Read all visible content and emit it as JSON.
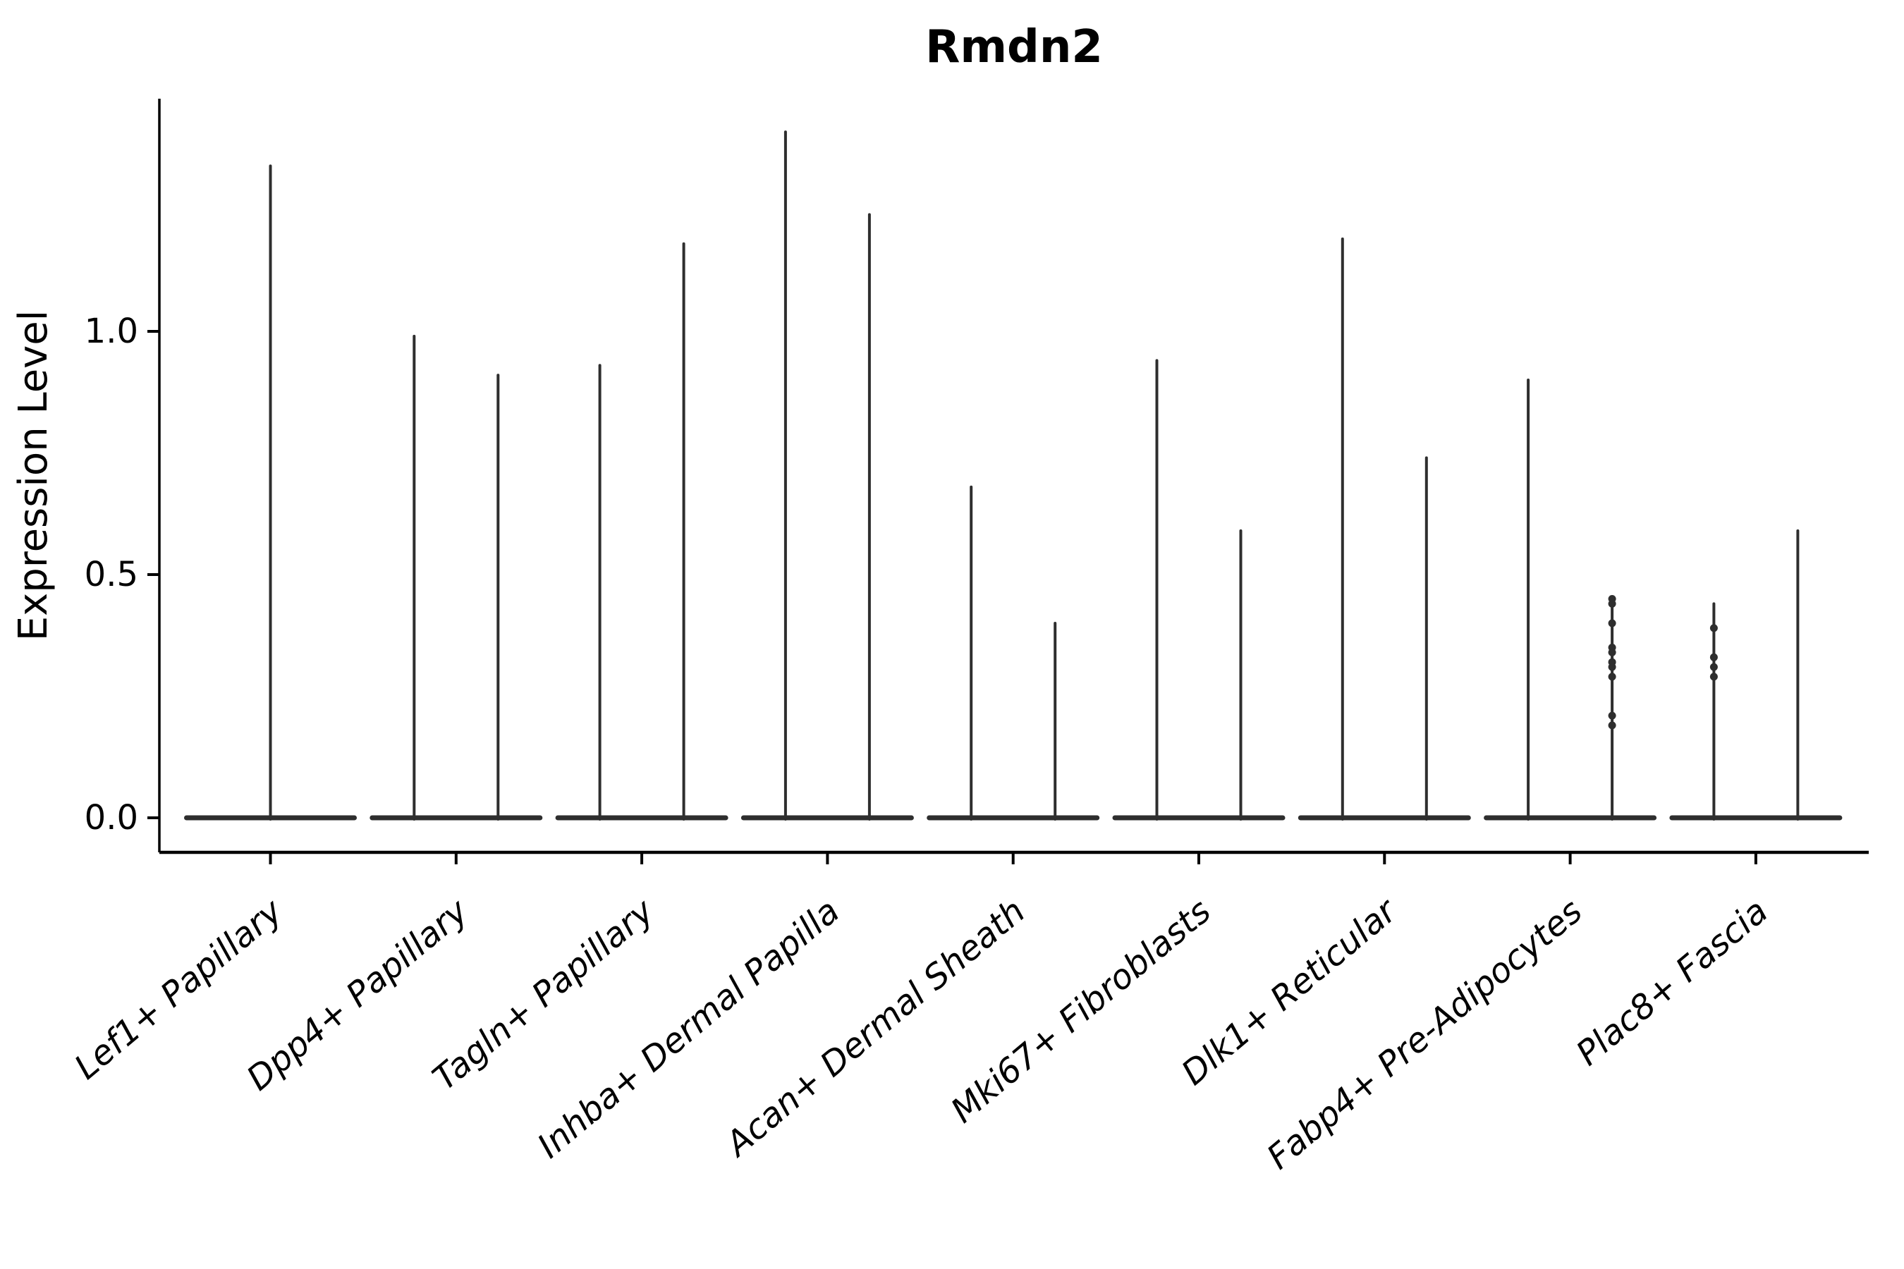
{
  "figure": {
    "title": "Rmdn2",
    "background": "#ffffff"
  },
  "chart_data": {
    "type": "violin",
    "title": "Rmdn2",
    "xlabel": "",
    "ylabel": "Expression Level",
    "yticks": [
      "0.0",
      "0.5",
      "1.0"
    ],
    "ytick_values": [
      0.0,
      0.5,
      1.0
    ],
    "ylim": [
      -0.07,
      1.48
    ],
    "grid": false,
    "legend": null,
    "x_tick_rotation_deg": 40,
    "categories": [
      "Lef1+ Papillary",
      "Dpp4+ Papillary",
      "Tagln+ Papillary",
      "Inhba+ Dermal Papilla",
      "Acan+ Dermal Sheath",
      "Mki67+ Fibroblasts",
      "Dlk1+ Reticular",
      "Fabp4+ Pre-Adipocytes",
      "Plac8+ Fascia"
    ],
    "violins": [
      {
        "label": "Lef1+ Papillary",
        "spikes": [
          {
            "pos": "center",
            "max": 1.34
          }
        ]
      },
      {
        "label": "Dpp4+ Papillary",
        "spikes": [
          {
            "pos": "left",
            "max": 0.99
          },
          {
            "pos": "right",
            "max": 0.91
          }
        ]
      },
      {
        "label": "Tagln+ Papillary",
        "spikes": [
          {
            "pos": "left",
            "max": 0.93
          },
          {
            "pos": "right",
            "max": 1.18
          }
        ]
      },
      {
        "label": "Inhba+ Dermal Papilla",
        "spikes": [
          {
            "pos": "left",
            "max": 1.41
          },
          {
            "pos": "right",
            "max": 1.24
          }
        ]
      },
      {
        "label": "Acan+ Dermal Sheath",
        "spikes": [
          {
            "pos": "left",
            "max": 0.68
          },
          {
            "pos": "right",
            "max": 0.4
          }
        ]
      },
      {
        "label": "Mki67+ Fibroblasts",
        "spikes": [
          {
            "pos": "left",
            "max": 0.94
          },
          {
            "pos": "right",
            "max": 0.59
          }
        ]
      },
      {
        "label": "Dlk1+ Reticular",
        "spikes": [
          {
            "pos": "left",
            "max": 1.19
          },
          {
            "pos": "right",
            "max": 0.74
          }
        ]
      },
      {
        "label": "Fabp4+ Pre-Adipocytes",
        "spikes": [
          {
            "pos": "left",
            "max": 0.9
          },
          {
            "pos": "right",
            "max": 0.45,
            "dots": [
              0.45,
              0.44,
              0.4,
              0.35,
              0.34,
              0.32,
              0.31,
              0.29,
              0.21,
              0.19
            ]
          }
        ]
      },
      {
        "label": "Plac8+ Fascia",
        "spikes": [
          {
            "pos": "left",
            "max": 0.44,
            "dots": [
              0.39,
              0.33,
              0.31,
              0.29
            ]
          },
          {
            "pos": "right",
            "max": 0.59
          }
        ]
      }
    ],
    "style": {
      "violin_color": "#2e2e2e",
      "axis_color": "#000000",
      "text_color": "#000000",
      "background": "#ffffff"
    }
  }
}
